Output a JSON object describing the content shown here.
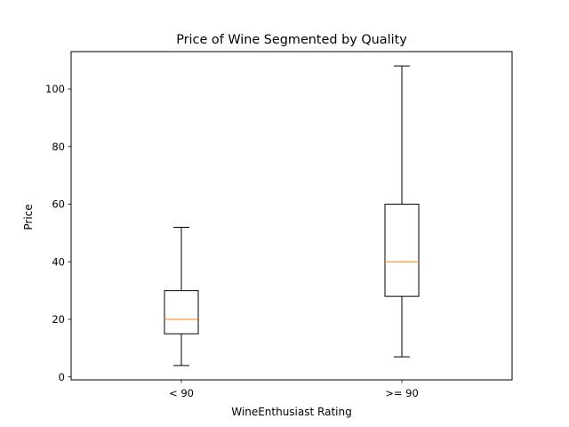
{
  "chart_data": {
    "type": "box",
    "title": "Price of Wine Segmented by Quality",
    "xlabel": "WineEnthusiast Rating",
    "ylabel": "Price",
    "ylim": [
      -1,
      113
    ],
    "yticks": [
      0,
      20,
      40,
      60,
      80,
      100
    ],
    "grid": false,
    "legend": "none",
    "categories": [
      "< 90",
      ">= 90"
    ],
    "boxes": [
      {
        "category": "< 90",
        "whisker_low": 4,
        "q1": 15,
        "median": 20,
        "q3": 30,
        "whisker_high": 52
      },
      {
        "category": ">= 90",
        "whisker_low": 7,
        "q1": 28,
        "median": 40,
        "q3": 60,
        "whisker_high": 108
      }
    ],
    "colors": {
      "box": "#000000",
      "median": "#ff7f0e",
      "whisker": "#000000"
    }
  }
}
